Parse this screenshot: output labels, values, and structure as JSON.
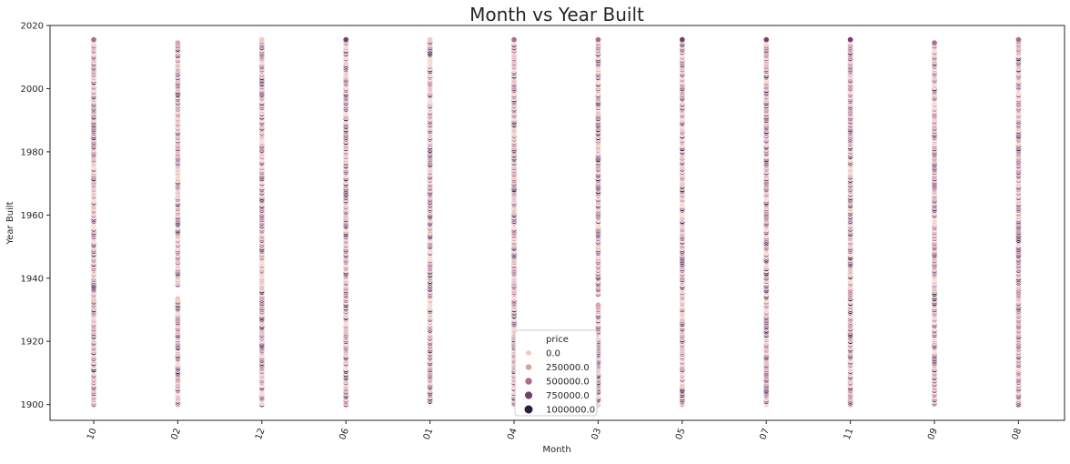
{
  "chart_data": {
    "type": "scatter",
    "title": "Month vs Year Built",
    "xlabel": "Month",
    "ylabel": "Year Built",
    "categories": [
      "10",
      "02",
      "12",
      "06",
      "01",
      "04",
      "03",
      "05",
      "07",
      "11",
      "09",
      "08"
    ],
    "ylim": [
      1895,
      2020
    ],
    "yticks": [
      1900,
      1920,
      1940,
      1960,
      1980,
      2000,
      2020
    ],
    "legend": {
      "title": "price",
      "placement": "lower-center",
      "entries": [
        {
          "label": "0.0",
          "value": 0,
          "color": "#f0c9c0"
        },
        {
          "label": "250000.0",
          "value": 250000,
          "color": "#d9a3a6"
        },
        {
          "label": "500000.0",
          "value": 500000,
          "color": "#b06a8c"
        },
        {
          "label": "750000.0",
          "value": 750000,
          "color": "#763f6e"
        },
        {
          "label": "1000000.0",
          "value": 1000000,
          "color": "#2d1e3e"
        }
      ]
    },
    "series": [
      {
        "category": "10",
        "year_range": [
          1900,
          2015
        ],
        "gaps": []
      },
      {
        "category": "02",
        "year_range": [
          1900,
          2014
        ],
        "gaps": [
          [
            1934,
            1937
          ]
        ]
      },
      {
        "category": "12",
        "year_range": [
          1900,
          2015
        ],
        "gaps": []
      },
      {
        "category": "06",
        "year_range": [
          1900,
          2015
        ],
        "gaps": []
      },
      {
        "category": "01",
        "year_range": [
          1901,
          2015
        ],
        "gaps": []
      },
      {
        "category": "04",
        "year_range": [
          1900,
          2015
        ],
        "gaps": []
      },
      {
        "category": "03",
        "year_range": [
          1900,
          2015
        ],
        "gaps": [
          [
            1932,
            1934
          ]
        ]
      },
      {
        "category": "05",
        "year_range": [
          1900,
          2015
        ],
        "gaps": []
      },
      {
        "category": "07",
        "year_range": [
          1900,
          2015
        ],
        "gaps": []
      },
      {
        "category": "11",
        "year_range": [
          1900,
          2015
        ],
        "gaps": []
      },
      {
        "category": "09",
        "year_range": [
          1900,
          2014
        ],
        "gaps": []
      },
      {
        "category": "08",
        "year_range": [
          1900,
          2015
        ],
        "gaps": []
      }
    ],
    "grid": false,
    "x_tick_rotation": 70
  }
}
